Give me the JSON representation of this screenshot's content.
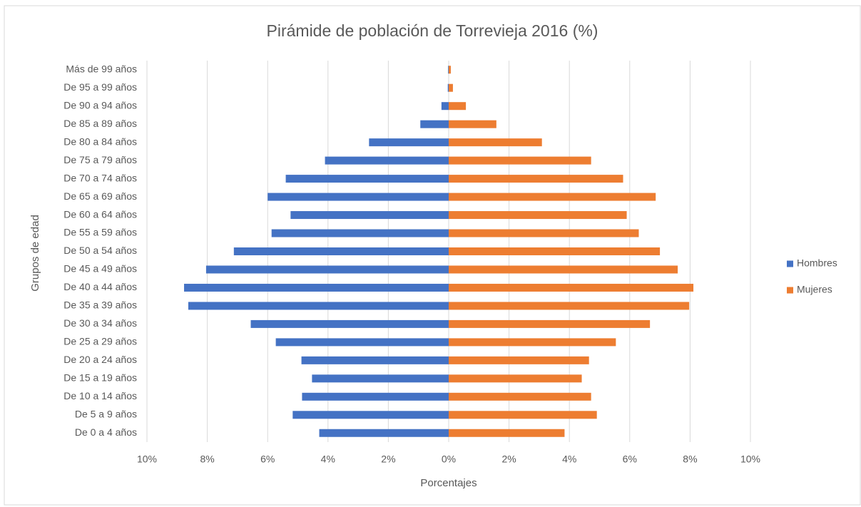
{
  "chart_data": {
    "type": "bar",
    "orientation": "horizontal",
    "stacked": true,
    "title": "Pirámide de población de Torrevieja 2016 (%)",
    "x_label": "Porcentajes",
    "y_label": "Grupos de edad",
    "categories": [
      "Más de 99 años",
      "De 95 a 99 años",
      "De 90 a 94 años",
      "De 85 a 89 años",
      "De 80 a 84 años",
      "De 75 a 79 años",
      "De 70 a 74 años",
      "De 65 a 69 años",
      "De 60 a 64 años",
      "De 55 a 59 años",
      "De 50 a 54 años",
      "De 45 a 49 años",
      "De 40 a 44 años",
      "De 35 a 39 años",
      "De 30 a 34 años",
      "De 25 a 29 años",
      "De 20 a 24 años",
      "De 15 a 19 años",
      "De 10 a 14 años",
      "De 5 a 9 años",
      "De 0 a 4 años"
    ],
    "series": [
      {
        "name": "Hombres",
        "color": "#4472c4",
        "values": [
          -0.02,
          -0.03,
          -0.24,
          -0.94,
          -2.64,
          -4.1,
          -5.4,
          -6.0,
          -5.24,
          -5.87,
          -7.12,
          -8.04,
          -8.77,
          -8.63,
          -6.56,
          -5.73,
          -4.88,
          -4.53,
          -4.86,
          -5.17,
          -4.29
        ]
      },
      {
        "name": "Mujeres",
        "color": "#ed7d31",
        "values": [
          0.07,
          0.14,
          0.57,
          1.58,
          3.09,
          4.72,
          5.78,
          6.86,
          5.9,
          6.3,
          7.0,
          7.59,
          8.11,
          7.97,
          6.67,
          5.54,
          4.65,
          4.41,
          4.72,
          4.91,
          3.84
        ]
      }
    ],
    "xlim": [
      -10,
      10
    ],
    "xticks": [
      {
        "value": -10,
        "label": "10%"
      },
      {
        "value": -8,
        "label": "8%"
      },
      {
        "value": -6,
        "label": "6%"
      },
      {
        "value": -4,
        "label": "4%"
      },
      {
        "value": -2,
        "label": "2%"
      },
      {
        "value": 0,
        "label": "0%"
      },
      {
        "value": 2,
        "label": "2%"
      },
      {
        "value": 4,
        "label": "4%"
      },
      {
        "value": 6,
        "label": "6%"
      },
      {
        "value": 8,
        "label": "8%"
      },
      {
        "value": 10,
        "label": "10%"
      }
    ],
    "grid": true,
    "legend_position": "right"
  }
}
